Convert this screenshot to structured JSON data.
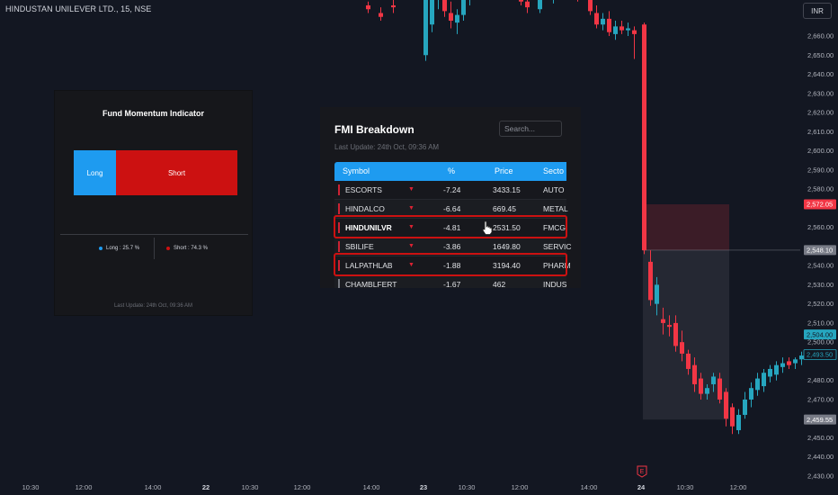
{
  "chart": {
    "symbol_title": "HINDUSTAN UNILEVER LTD., 15, NSE",
    "currency_button": "INR",
    "price_axis": [
      "2,660.00",
      "2,650.00",
      "2,640.00",
      "2,630.00",
      "2,620.00",
      "2,610.00",
      "2,600.00",
      "2,590.00",
      "2,580.00",
      "2,560.00",
      "2,540.00",
      "2,530.00",
      "2,520.00",
      "2,510.00",
      "2,500.00",
      "2,480.00",
      "2,470.00",
      "2,460.00",
      "2,450.00",
      "2,440.00",
      "2,430.00"
    ],
    "time_axis": [
      "10:30",
      "12:00",
      "14:00",
      "22",
      "10:30",
      "12:00",
      "14:00",
      "23",
      "10:30",
      "12:00",
      "14:00",
      "24",
      "10:30",
      "12:00"
    ],
    "earnings_marker": "E",
    "price_badges": {
      "stop": "2,572.05",
      "entry": "2,548.10",
      "current": "2,504.00",
      "last": "2,493.50",
      "target": "2,459.55"
    },
    "colors": {
      "up": "#26a6bf",
      "down": "#f23645",
      "background": "#131722"
    }
  },
  "fmi_indicator": {
    "title": "Fund Momentum Indicator",
    "long_label": "Long",
    "short_label": "Short",
    "long_pct": 25.7,
    "short_pct": 74.3,
    "legend_long": "Long : 25.7 %",
    "legend_short": "Short : 74.3 %",
    "last_update": "Last Update: 24th Oct, 09:36 AM",
    "colors": {
      "long": "#1e9bf0",
      "short": "#cc1111"
    }
  },
  "fmi_breakdown": {
    "title": "FMI Breakdown",
    "search_placeholder": "Search...",
    "last_update": "Last Update: 24th Oct, 09:36 AM",
    "columns": [
      "Symbol",
      "%",
      "Price",
      "Secto"
    ],
    "rows": [
      {
        "symbol": "ESCORTS",
        "pct": "-7.24",
        "price": "3433.15",
        "sector": "AUTO"
      },
      {
        "symbol": "HINDALCO",
        "pct": "-6.64",
        "price": "669.45",
        "sector": "METAL"
      },
      {
        "symbol": "HINDUNILVR",
        "pct": "-4.81",
        "price": "2531.50",
        "sector": "FMCG"
      },
      {
        "symbol": "SBILIFE",
        "pct": "-3.86",
        "price": "1649.80",
        "sector": "SERVIC"
      },
      {
        "symbol": "LALPATHLAB",
        "pct": "-1.88",
        "price": "3194.40",
        "sector": "PHARM"
      },
      {
        "symbol": "CHAMBLFERT",
        "pct": "-1.67",
        "price": "462",
        "sector": "INDUS"
      }
    ]
  }
}
